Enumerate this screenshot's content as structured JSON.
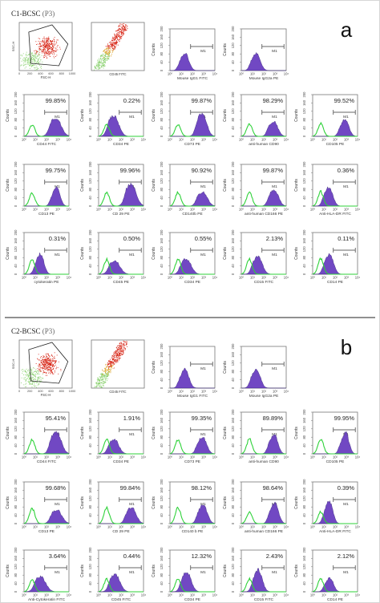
{
  "figure": {
    "panels": [
      {
        "letter": "a",
        "title": "C1-BCSC",
        "gate": "(P3)",
        "dot_plots": [
          {
            "xlabel": "FSC-H",
            "ylabel": "SSC-H",
            "xticks": [
              "0",
              "200",
              "400",
              "600",
              "800",
              "1000"
            ],
            "yticks": [
              "0",
              "200",
              "400",
              "600",
              "800",
              "1000"
            ]
          },
          {
            "xlabel": "CD45 FITC",
            "ylabel": "",
            "xticks": [],
            "yticks": []
          }
        ],
        "isotype_histograms": [
          {
            "xlabel": "Mouse IgG1 FITC",
            "gate": "M1"
          },
          {
            "xlabel": "Mouse IgG2a PE",
            "gate": "M1"
          }
        ],
        "histograms": [
          {
            "percent": "99.85%",
            "xlabel": "CD44 FITC",
            "gate": "M1"
          },
          {
            "percent": "0.22%",
            "xlabel": "CD34 PE",
            "gate": "M1"
          },
          {
            "percent": "99.87%",
            "xlabel": "CD73 PE",
            "gate": "M1"
          },
          {
            "percent": "98.29%",
            "xlabel": "anti-human CD90",
            "gate": "M1"
          },
          {
            "percent": "99.52%",
            "xlabel": "CD105 PE",
            "gate": "M1"
          },
          {
            "percent": "99.75%",
            "xlabel": "CD13 PE",
            "gate": "M1"
          },
          {
            "percent": "99.96%",
            "xlabel": "CD 29 PE",
            "gate": "M1"
          },
          {
            "percent": "90.92%",
            "xlabel": "CD140b PE",
            "gate": "M1"
          },
          {
            "percent": "99.87%",
            "xlabel": "anti-human CD166 PE",
            "gate": "M1"
          },
          {
            "percent": "0.36%",
            "xlabel": "Anti-HLA-DR FITC",
            "gate": "M1"
          },
          {
            "percent": "0.31%",
            "xlabel": "cytokeratin PE",
            "gate": "M1"
          },
          {
            "percent": "0.50%",
            "xlabel": "CD45 PE",
            "gate": "M1"
          },
          {
            "percent": "0.55%",
            "xlabel": "CD34 PE",
            "gate": "M1"
          },
          {
            "percent": "2.13%",
            "xlabel": "CD15 FITC",
            "gate": "M1"
          },
          {
            "percent": "0.11%",
            "xlabel": "CD14 PE",
            "gate": "M1"
          }
        ]
      },
      {
        "letter": "b",
        "title": "C2-BCSC",
        "gate": "(P3)",
        "dot_plots": [
          {
            "xlabel": "FSC-H",
            "ylabel": "SSC-H",
            "xticks": [
              "0",
              "200",
              "400",
              "600",
              "800",
              "1000"
            ],
            "yticks": [
              "0",
              "200",
              "400",
              "600",
              "800",
              "1000"
            ]
          },
          {
            "xlabel": "CD45 FITC",
            "ylabel": "",
            "xticks": [],
            "yticks": []
          }
        ],
        "isotype_histograms": [
          {
            "xlabel": "Mouse IgG1 FITC",
            "gate": "M1"
          },
          {
            "xlabel": "Mouse IgG2a PE",
            "gate": "M1"
          }
        ],
        "histograms": [
          {
            "percent": "95.41%",
            "xlabel": "CD44 FITC",
            "gate": "M1"
          },
          {
            "percent": "1.91%",
            "xlabel": "CD34 PE",
            "gate": "M1"
          },
          {
            "percent": "99.35%",
            "xlabel": "CD73 PE",
            "gate": "M1"
          },
          {
            "percent": "89.89%",
            "xlabel": "anti-human CD90",
            "gate": "M1"
          },
          {
            "percent": "99.95%",
            "xlabel": "CD105 PE",
            "gate": "M1"
          },
          {
            "percent": "99.68%",
            "xlabel": "CD13 PE",
            "gate": "M1"
          },
          {
            "percent": "99.84%",
            "xlabel": "CD 29 PE",
            "gate": "M1"
          },
          {
            "percent": "98.12%",
            "xlabel": "CD140 b PE",
            "gate": "M1"
          },
          {
            "percent": "98.64%",
            "xlabel": "anti-human CD166 PE",
            "gate": "M1"
          },
          {
            "percent": "0.39%",
            "xlabel": "Anti-HLA-DR FITC",
            "gate": "M1"
          },
          {
            "percent": "3.64%",
            "xlabel": "Anti-Cytokeratin FITC",
            "gate": "M1"
          },
          {
            "percent": "0.44%",
            "xlabel": "CD45 FITC",
            "gate": "M1"
          },
          {
            "percent": "12.32%",
            "xlabel": "CD34 PE",
            "gate": "M1"
          },
          {
            "percent": "2.43%",
            "xlabel": "CD15 FITC",
            "gate": "M1"
          },
          {
            "percent": "2.12%",
            "xlabel": "CD14 PE",
            "gate": "M1"
          }
        ]
      }
    ],
    "histogram_axes": {
      "ylabel": "Counts",
      "yticks": [
        "0",
        "40",
        "80",
        "120",
        "160",
        "200"
      ],
      "xticks": [
        "10⁰",
        "10¹",
        "10²",
        "10³",
        "10⁴"
      ]
    },
    "colors": {
      "sample_fill": "#6a3fc0",
      "sample_line": "#2c1a6e",
      "isotype_line": "#2fd23a",
      "gated_dots": "#d62010",
      "ungated_dots": "#86cf6a",
      "late_dots": "#d9a020",
      "divider": "#222222"
    }
  },
  "chart_data": [
    {
      "type": "bar",
      "panel": "a",
      "title": "C1-BCSC",
      "categories": [
        "CD44 FITC",
        "CD34 PE",
        "CD73 PE",
        "anti-human CD90",
        "CD105 PE",
        "CD13 PE",
        "CD 29 PE",
        "CD140b PE",
        "anti-human CD166 PE",
        "Anti-HLA-DR FITC",
        "cytokeratin PE",
        "CD45 PE",
        "CD34 PE",
        "CD15 FITC",
        "CD14 PE"
      ],
      "values": [
        99.85,
        0.22,
        99.87,
        98.29,
        99.52,
        99.75,
        99.96,
        90.92,
        99.87,
        0.36,
        0.31,
        0.5,
        0.55,
        2.13,
        0.11
      ],
      "ylabel": "Counts",
      "ylim": [
        0,
        200
      ],
      "xscale": "log",
      "xlim": [
        1,
        10000
      ]
    },
    {
      "type": "bar",
      "panel": "b",
      "title": "C2-BCSC",
      "categories": [
        "CD44 FITC",
        "CD34 PE",
        "CD73 PE",
        "anti-human CD90",
        "CD105 PE",
        "CD13 PE",
        "CD 29 PE",
        "CD140 b PE",
        "anti-human CD166 PE",
        "Anti-HLA-DR FITC",
        "Anti-Cytokeratin FITC",
        "CD45 FITC",
        "CD34 PE",
        "CD15 FITC",
        "CD14 PE"
      ],
      "values": [
        95.41,
        1.91,
        99.35,
        89.89,
        99.95,
        99.68,
        99.84,
        98.12,
        98.64,
        0.39,
        3.64,
        0.44,
        12.32,
        2.43,
        2.12
      ],
      "ylabel": "Counts",
      "ylim": [
        0,
        200
      ],
      "xscale": "log",
      "xlim": [
        1,
        10000
      ]
    }
  ]
}
